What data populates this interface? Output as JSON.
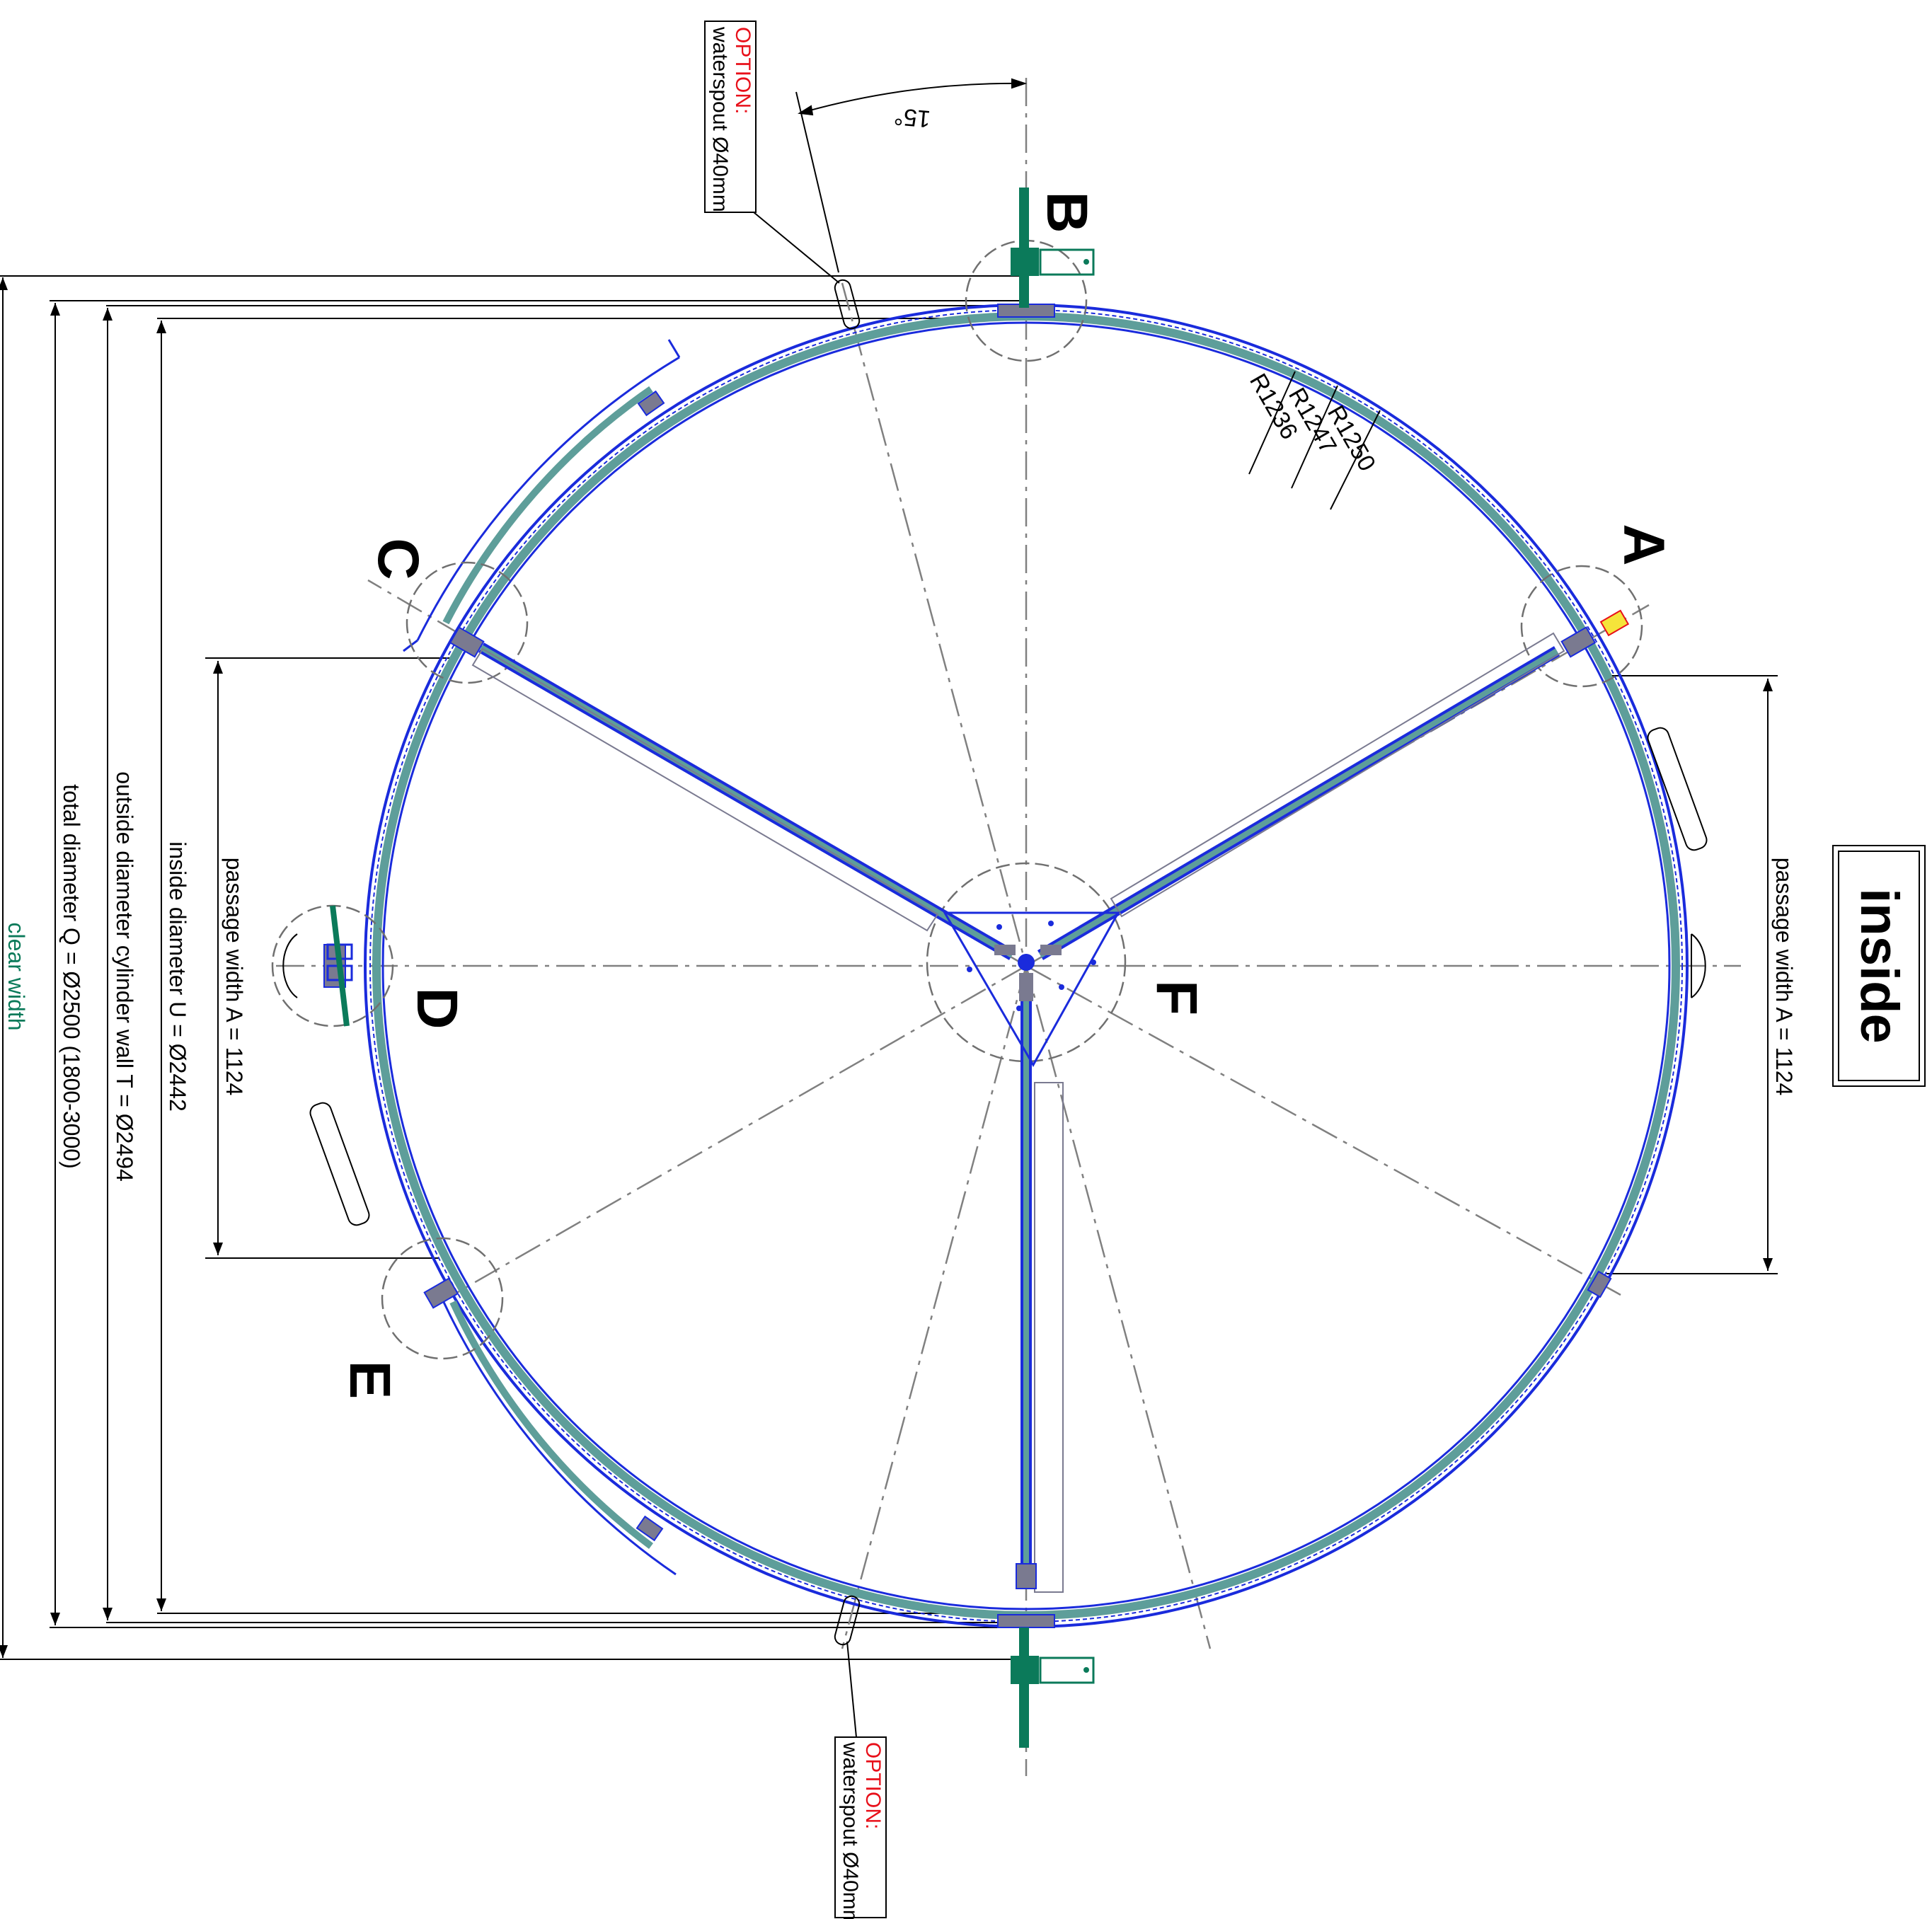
{
  "colors": {
    "line_blue": "#1a2bdc",
    "door_teal": "#5e9e9a",
    "door_green": "#0b7a5a",
    "hinge_gray": "#6f6f85",
    "center_gray": "#808080",
    "option_red": "#e8101a",
    "clear_width_green": "#0b7a5a",
    "text_black": "#000000"
  },
  "labels": {
    "A": "A",
    "B": "B",
    "C": "C",
    "D": "D",
    "E": "E",
    "F": "F",
    "inside": "inside",
    "angle": "15°",
    "r1250": "R1250",
    "r1247": "R1247",
    "r1236": "R1236"
  },
  "dimensions": {
    "clear_width": "clear width",
    "total_diameter": "total diameter Q = Ø2500 (1800-3000)",
    "outside_diameter": "outside diameter cylinder wall T = Ø2494",
    "inside_diameter": "inside diameter U = Ø2442",
    "passage_left": "passage width A = 1124",
    "passage_right": "passage width A = 1124"
  },
  "options": {
    "top": {
      "title": "OPTION:",
      "text": "waterspout Ø40mm"
    },
    "bottom": {
      "title": "OPTION:",
      "text": "waterspout Ø40mm"
    }
  }
}
